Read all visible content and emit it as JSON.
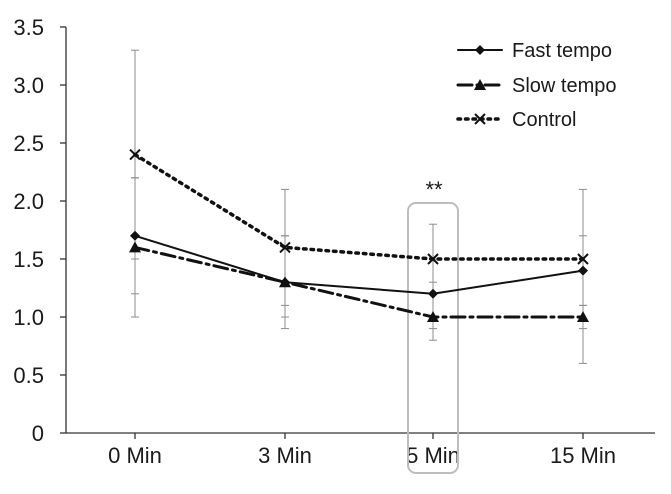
{
  "chart_data": {
    "type": "line",
    "title": "",
    "xlabel": "",
    "ylabel": "",
    "categories": [
      "0 Min",
      "3 Min",
      "5 Min",
      "15 Min"
    ],
    "ylim": [
      0,
      3.5
    ],
    "yticks": [
      "0",
      "0.5",
      "1.0",
      "1.5",
      "2.0",
      "2.5",
      "3.0",
      "3.5"
    ],
    "ytick_values": [
      0,
      0.5,
      1.0,
      1.5,
      2.0,
      2.5,
      3.0,
      3.5
    ],
    "grid": false,
    "legend_position": "top-right",
    "series": [
      {
        "name": "Fast tempo",
        "marker": "diamond",
        "dash": "solid",
        "values": [
          1.7,
          1.3,
          1.2,
          1.4
        ],
        "err_low": [
          1.2,
          1.0,
          0.9,
          1.1
        ],
        "err_high": [
          2.2,
          1.7,
          1.5,
          1.7
        ]
      },
      {
        "name": "Slow tempo",
        "marker": "triangle",
        "dash": "dashdot",
        "values": [
          1.6,
          1.3,
          1.0,
          1.0
        ],
        "err_low": [
          1.0,
          0.9,
          0.8,
          0.9
        ],
        "err_high": [
          2.2,
          1.7,
          1.3,
          1.1
        ]
      },
      {
        "name": "Control",
        "marker": "x",
        "dash": "dotted",
        "values": [
          2.4,
          1.6,
          1.5,
          1.5
        ],
        "err_low": [
          1.5,
          1.1,
          1.2,
          0.6
        ],
        "err_high": [
          3.3,
          2.1,
          1.8,
          2.1
        ]
      }
    ],
    "annotations": [
      {
        "text": "**",
        "category": "5 Min",
        "highlight_box": true
      }
    ],
    "colors": {
      "lines": "#111111",
      "error_bars": "#8c8c8c",
      "highlight_box": "#bdbdbd"
    }
  }
}
